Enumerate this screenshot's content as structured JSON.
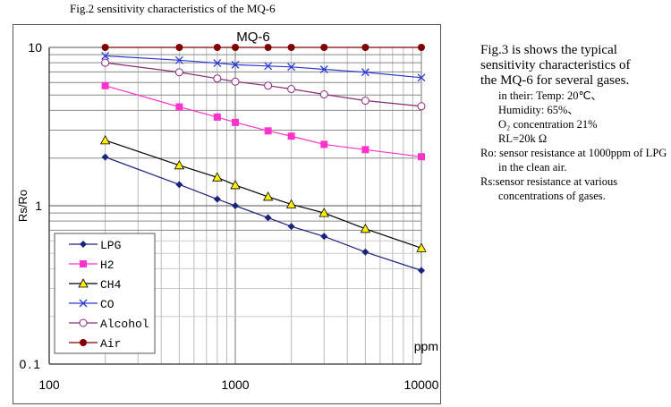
{
  "caption": "Fig.2 sensitivity characteristics of the MQ-6",
  "chart_data": {
    "type": "line",
    "title": "MQ-6",
    "xlabel": "ppm",
    "ylabel": "Rs/Ro",
    "xscale": "log",
    "yscale": "log",
    "xlim": [
      100,
      10000
    ],
    "ylim": [
      0.1,
      10
    ],
    "xticks": [
      "100",
      "1000",
      "10000"
    ],
    "yticks": [
      "0.1",
      "1",
      "10"
    ],
    "grid": true,
    "legend_position": "bottom-left",
    "x": [
      200,
      500,
      800,
      1000,
      1500,
      2000,
      3000,
      5000,
      10000
    ],
    "series": [
      {
        "name": "LPG",
        "color": "#1a237e",
        "marker": "diamond",
        "values": [
          2.03,
          1.36,
          1.1,
          1.0,
          0.84,
          0.74,
          0.64,
          0.51,
          0.39
        ]
      },
      {
        "name": "H2",
        "color": "#ff33cc",
        "marker": "square",
        "values": [
          5.73,
          4.21,
          3.63,
          3.36,
          2.97,
          2.75,
          2.44,
          2.26,
          2.04
        ]
      },
      {
        "name": "CH4",
        "color": "#000000",
        "marker": "triangle",
        "values": [
          2.59,
          1.8,
          1.51,
          1.35,
          1.14,
          1.02,
          0.9,
          0.715,
          0.54
        ]
      },
      {
        "name": "CO",
        "color": "#2a3bd6",
        "marker": "x",
        "values": [
          8.84,
          8.3,
          7.96,
          7.77,
          7.63,
          7.53,
          7.27,
          6.97,
          6.44
        ]
      },
      {
        "name": "Alcohol",
        "color": "#8b2a7a",
        "marker": "circle-open",
        "values": [
          8.0,
          6.97,
          6.36,
          6.08,
          5.73,
          5.46,
          5.05,
          4.61,
          4.25
        ]
      },
      {
        "name": "Air",
        "color": "#800000",
        "marker": "circle",
        "values": [
          10,
          10,
          10,
          10,
          10,
          10,
          10,
          10,
          10
        ]
      }
    ]
  },
  "side": {
    "intro": [
      "Fig.3 is shows the typical",
      "sensitivity characteristics of",
      "the MQ-6 for several gases."
    ],
    "conditions": [
      "in their: Temp: 20℃、",
      "Humidity: 65%、",
      "O₂ concentration 21%",
      "RL=20k Ω"
    ],
    "ro": "Ro: sensor resistance at 1000ppm of LPG in the clean air.",
    "rs": "Rs:sensor resistance at various concentrations of gases."
  }
}
